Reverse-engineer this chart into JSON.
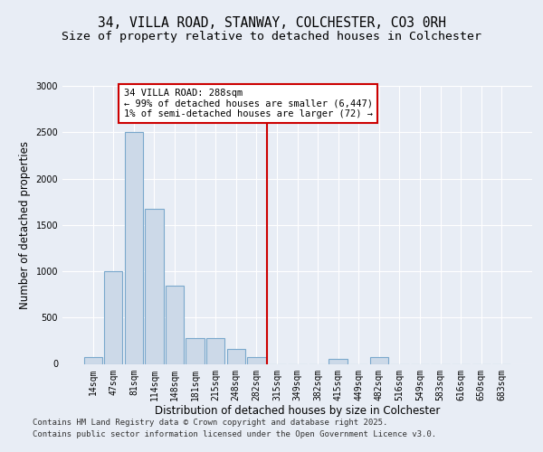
{
  "title_line1": "34, VILLA ROAD, STANWAY, COLCHESTER, CO3 0RH",
  "title_line2": "Size of property relative to detached houses in Colchester",
  "xlabel": "Distribution of detached houses by size in Colchester",
  "ylabel": "Number of detached properties",
  "categories": [
    "14sqm",
    "47sqm",
    "81sqm",
    "114sqm",
    "148sqm",
    "181sqm",
    "215sqm",
    "248sqm",
    "282sqm",
    "315sqm",
    "349sqm",
    "382sqm",
    "415sqm",
    "449sqm",
    "482sqm",
    "516sqm",
    "549sqm",
    "583sqm",
    "616sqm",
    "650sqm",
    "683sqm"
  ],
  "values": [
    75,
    1000,
    2500,
    1670,
    840,
    280,
    280,
    160,
    75,
    0,
    0,
    0,
    55,
    0,
    75,
    0,
    0,
    0,
    0,
    0,
    0
  ],
  "bar_color": "#ccd9e8",
  "bar_edge_color": "#7aa8cc",
  "background_color": "#e8edf5",
  "grid_color": "#ffffff",
  "annotation_text": "34 VILLA ROAD: 288sqm\n← 99% of detached houses are smaller (6,447)\n1% of semi-detached houses are larger (72) →",
  "annotation_box_color": "#ffffff",
  "annotation_box_edge": "#cc0000",
  "vline_color": "#cc0000",
  "vline_x": 8.5,
  "ylim": [
    0,
    3000
  ],
  "yticks": [
    0,
    500,
    1000,
    1500,
    2000,
    2500,
    3000
  ],
  "footer_line1": "Contains HM Land Registry data © Crown copyright and database right 2025.",
  "footer_line2": "Contains public sector information licensed under the Open Government Licence v3.0.",
  "title_fontsize": 10.5,
  "subtitle_fontsize": 9.5,
  "axis_label_fontsize": 8.5,
  "tick_fontsize": 7,
  "annotation_fontsize": 7.5,
  "footer_fontsize": 6.5
}
